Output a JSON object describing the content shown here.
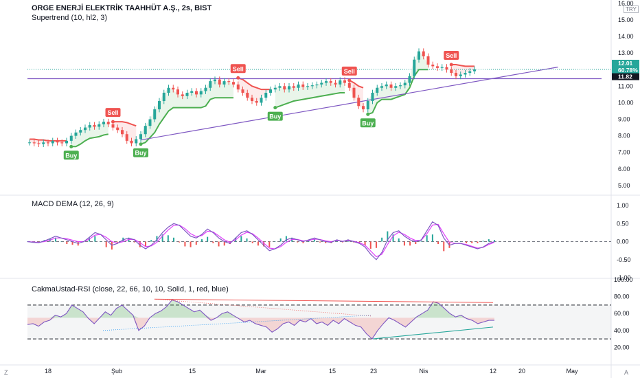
{
  "header": {
    "title": "ORGE ENERJİ ELEKTRİK TAAHHÜT A.Ş., 2s, BIST",
    "currency": "TRY",
    "indicator1": "Supertrend (10, hl2, 3)",
    "indicator2": "MACD DEMA (12, 26, 9)",
    "indicator3": "CakmaUstad-RSI (close, 22, 66, 10, 10, Solid, 1, red, blue)"
  },
  "colors": {
    "up": "#26a69a",
    "down": "#ef5350",
    "supertrend_up": "#4caf50",
    "supertrend_down": "#ef5350",
    "trendline": "#7e57c2",
    "macd": "#7e57c2",
    "signal": "#e040fb",
    "rsi": "#7e57c2"
  },
  "chart_data": [
    {
      "type": "candlestick",
      "name": "price",
      "ylim": [
        4.5,
        16.2
      ],
      "y_ticks": [
        "5.00",
        "6.00",
        "7.00",
        "8.00",
        "9.00",
        "10.00",
        "11.00",
        "12.00",
        "13.00",
        "14.00",
        "15.00",
        "16.00"
      ],
      "x_ticks": [
        "18",
        "Şub",
        "15",
        "Mar",
        "15",
        "23",
        "Nis",
        "12",
        "20",
        "May"
      ],
      "close_series": [
        7.6,
        7.55,
        7.5,
        7.6,
        7.55,
        7.7,
        7.6,
        7.55,
        7.7,
        8.0,
        8.2,
        8.35,
        8.5,
        8.65,
        8.55,
        8.7,
        8.85,
        8.7,
        8.5,
        8.35,
        8.1,
        7.7,
        7.55,
        7.8,
        8.1,
        8.6,
        9.0,
        9.6,
        10.1,
        10.6,
        10.9,
        10.8,
        10.5,
        10.4,
        10.6,
        10.7,
        10.5,
        10.7,
        10.9,
        11.3,
        11.4,
        11.1,
        11.3,
        11.25,
        11.1,
        10.8,
        10.6,
        10.3,
        10.1,
        10.0,
        10.3,
        10.6,
        10.8,
        10.9,
        11.0,
        10.8,
        11.0,
        10.9,
        11.1,
        10.95,
        11.0,
        11.05,
        11.1,
        11.2,
        11.3,
        11.2,
        11.1,
        11.35,
        11.2,
        10.9,
        10.3,
        9.8,
        9.6,
        10.1,
        10.6,
        10.9,
        11.0,
        11.1,
        10.9,
        11.0,
        11.05,
        11.2,
        11.6,
        12.6,
        13.1,
        12.8,
        12.3,
        12.2,
        12.1,
        12.15,
        12.0,
        11.8,
        11.6,
        11.7,
        11.8,
        11.9,
        12.01
      ],
      "supertrend": [
        {
          "trend": "down",
          "from": 0,
          "to": 8,
          "levels": [
            7.8,
            7.8,
            7.75,
            7.75,
            7.7,
            7.7,
            7.7,
            7.7,
            7.7
          ]
        },
        {
          "trend": "up",
          "from": 9,
          "to": 17,
          "levels": [
            7.35,
            7.35,
            7.5,
            7.7,
            7.85,
            7.9,
            7.95,
            8.05,
            8.1
          ]
        },
        {
          "trend": "down",
          "from": 18,
          "to": 23,
          "levels": [
            8.85,
            8.85,
            8.85,
            8.8,
            8.7,
            8.6
          ]
        },
        {
          "trend": "up",
          "from": 24,
          "to": 44,
          "levels": [
            7.5,
            7.6,
            7.9,
            8.2,
            8.7,
            9.1,
            9.5,
            9.7,
            9.7,
            9.7,
            9.7,
            9.7,
            9.7,
            9.7,
            9.8,
            10.2,
            10.3,
            10.3,
            10.3,
            10.3,
            10.3
          ]
        },
        {
          "trend": "down",
          "from": 45,
          "to": 52,
          "levels": [
            11.5,
            11.4,
            11.2,
            11.0,
            10.9,
            10.8,
            10.8,
            10.8
          ]
        },
        {
          "trend": "up",
          "from": 53,
          "to": 68,
          "levels": [
            9.7,
            9.8,
            9.9,
            10.0,
            10.1,
            10.15,
            10.2,
            10.25,
            10.3,
            10.35,
            10.4,
            10.45,
            10.5,
            10.55,
            10.6,
            10.6
          ]
        },
        {
          "trend": "down",
          "from": 69,
          "to": 72,
          "levels": [
            11.35,
            11.2,
            11.0,
            10.9
          ]
        },
        {
          "trend": "up",
          "from": 73,
          "to": 86,
          "levels": [
            9.3,
            9.4,
            10.0,
            10.2,
            10.2,
            10.2,
            10.3,
            10.4,
            10.5,
            10.9,
            11.6,
            12.0,
            12.0,
            12.0
          ]
        },
        {
          "trend": "down",
          "from": 91,
          "to": 96,
          "levels": [
            12.3,
            12.3,
            12.25,
            12.2,
            12.2,
            12.2
          ]
        }
      ],
      "signals": [
        {
          "label": "Buy",
          "index": 9,
          "value": 7.35
        },
        {
          "label": "Sell",
          "index": 18,
          "value": 8.85
        },
        {
          "label": "Buy",
          "index": 24,
          "value": 7.5
        },
        {
          "label": "Sell",
          "index": 45,
          "value": 11.5
        },
        {
          "label": "Buy",
          "index": 53,
          "value": 9.7
        },
        {
          "label": "Sell",
          "index": 69,
          "value": 11.35
        },
        {
          "label": "Buy",
          "index": 73,
          "value": 9.3
        },
        {
          "label": "Sell",
          "index": 91,
          "value": 12.3
        }
      ],
      "horizontal_line": 11.45,
      "trendline": [
        {
          "index": 24,
          "value": 7.75
        },
        {
          "index": 114,
          "value": 12.15
        }
      ],
      "price_tags": [
        "12.01",
        "60.78%",
        "11.82"
      ]
    },
    {
      "type": "line",
      "name": "macd",
      "ylim": [
        -1.0,
        1.25
      ],
      "y_ticks": [
        "1.00",
        "0.50",
        "0.00",
        "-0.50",
        "-1.00"
      ],
      "series": [
        {
          "role": "macd",
          "values": [
            0.0,
            -0.02,
            -0.03,
            0.02,
            0.08,
            0.15,
            0.1,
            0.05,
            0.0,
            -0.05,
            0.0,
            0.12,
            0.25,
            0.2,
            0.05,
            -0.1,
            -0.05,
            0.05,
            0.1,
            0.05,
            -0.1,
            -0.2,
            -0.1,
            0.05,
            0.25,
            0.4,
            0.5,
            0.45,
            0.3,
            0.15,
            0.1,
            0.2,
            0.35,
            0.25,
            0.1,
            0.0,
            -0.05,
            0.1,
            0.25,
            0.3,
            0.2,
            0.05,
            -0.1,
            -0.25,
            -0.2,
            -0.1,
            0.05,
            0.1,
            0.05,
            0.0,
            0.05,
            0.1,
            0.05,
            0.0,
            -0.02,
            0.05,
            0.0,
            0.05,
            0.0,
            -0.05,
            -0.15,
            -0.35,
            -0.5,
            -0.3,
            0.05,
            0.25,
            0.3,
            0.15,
            0.05,
            0.0,
            0.05,
            0.3,
            0.55,
            0.45,
            0.1,
            -0.1,
            -0.05,
            -0.05,
            -0.1,
            -0.15,
            -0.2,
            -0.15,
            -0.05,
            0.0
          ]
        },
        {
          "role": "signal",
          "values": [
            0.0,
            -0.01,
            -0.02,
            0.0,
            0.04,
            0.1,
            0.1,
            0.08,
            0.04,
            0.0,
            0.0,
            0.07,
            0.18,
            0.2,
            0.12,
            0.0,
            -0.04,
            0.0,
            0.06,
            0.06,
            -0.03,
            -0.14,
            -0.12,
            -0.02,
            0.16,
            0.32,
            0.45,
            0.46,
            0.36,
            0.22,
            0.14,
            0.17,
            0.29,
            0.27,
            0.16,
            0.05,
            -0.02,
            0.05,
            0.18,
            0.26,
            0.22,
            0.1,
            -0.04,
            -0.18,
            -0.2,
            -0.14,
            -0.02,
            0.06,
            0.06,
            0.02,
            0.03,
            0.07,
            0.06,
            0.02,
            0.0,
            0.03,
            0.01,
            0.03,
            0.01,
            -0.03,
            -0.1,
            -0.26,
            -0.42,
            -0.35,
            -0.08,
            0.16,
            0.26,
            0.2,
            0.1,
            0.03,
            0.04,
            0.22,
            0.46,
            0.48,
            0.22,
            -0.02,
            -0.05,
            -0.05,
            -0.08,
            -0.13,
            -0.18,
            -0.16,
            -0.08,
            -0.02
          ]
        }
      ]
    },
    {
      "type": "line",
      "name": "rsi",
      "ylim": [
        0,
        100
      ],
      "y_ticks": [
        "100.00",
        "80.00",
        "60.00",
        "40.00",
        "20.00"
      ],
      "upper_band": 70,
      "lower_band": 30,
      "series": [
        {
          "role": "rsi",
          "values": [
            47,
            48,
            45,
            50,
            52,
            58,
            56,
            60,
            70,
            66,
            62,
            54,
            48,
            55,
            62,
            58,
            66,
            70,
            64,
            58,
            40,
            45,
            55,
            60,
            63,
            68,
            76,
            74,
            70,
            66,
            62,
            64,
            58,
            52,
            55,
            60,
            62,
            58,
            54,
            50,
            52,
            48,
            46,
            44,
            38,
            42,
            48,
            50,
            46,
            52,
            50,
            54,
            48,
            50,
            46,
            52,
            48,
            54,
            50,
            46,
            44,
            36,
            30,
            40,
            48,
            55,
            52,
            48,
            44,
            50,
            56,
            60,
            64,
            74,
            72,
            66,
            60,
            56,
            58,
            54,
            52,
            48,
            50,
            52,
            52
          ]
        }
      ]
    }
  ]
}
